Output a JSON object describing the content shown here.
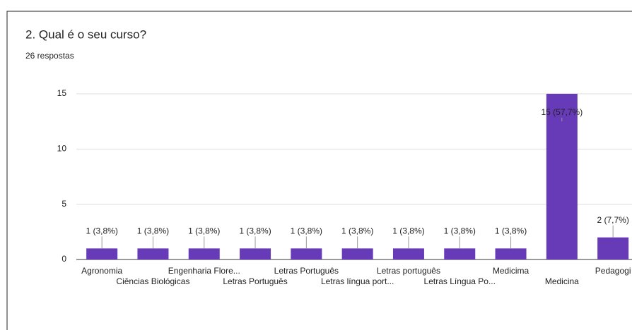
{
  "chart_data": {
    "type": "bar",
    "title": "2. Qual é o seu curso?",
    "subtitle": "26 respostas",
    "categories": [
      "Agronomia",
      "Ciências Biológicas",
      "Engenharia Flore...",
      "Letras Português",
      "Letras Português",
      "Letras língua port...",
      "Letras português",
      "Letras Língua Po...",
      "Medicima",
      "Medicina",
      "Pedagogi"
    ],
    "values": [
      1,
      1,
      1,
      1,
      1,
      1,
      1,
      1,
      1,
      15,
      2
    ],
    "value_labels": [
      "1 (3,8%)",
      "1 (3,8%)",
      "1 (3,8%)",
      "1 (3,8%)",
      "1 (3,8%)",
      "1 (3,8%)",
      "1 (3,8%)",
      "1 (3,8%)",
      "1 (3,8%)",
      "15 (57,7%)",
      "2 (7,7%)"
    ],
    "color": "#673ab7",
    "ylim": [
      0,
      15
    ],
    "yticks": [
      0,
      5,
      10,
      15
    ],
    "grid": true
  }
}
